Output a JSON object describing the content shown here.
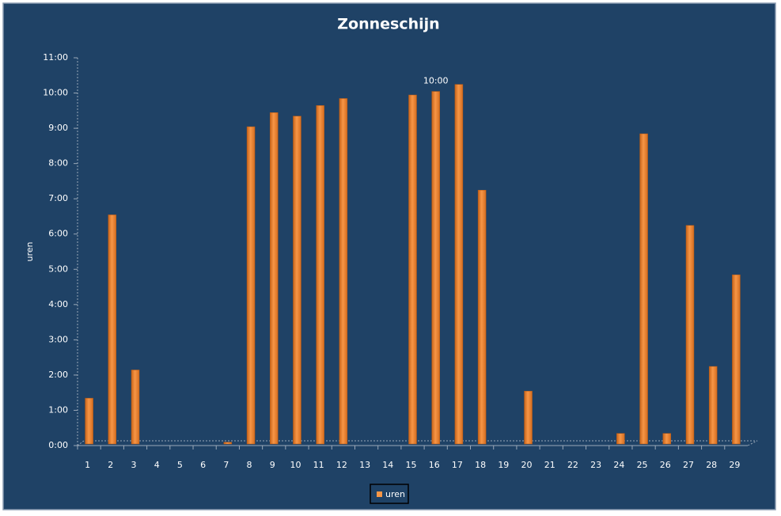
{
  "chart_data": {
    "type": "bar",
    "title": "Zonneschijn",
    "y_label": "uren",
    "categories": [
      "1",
      "2",
      "3",
      "4",
      "5",
      "6",
      "7",
      "8",
      "9",
      "10",
      "11",
      "12",
      "13",
      "14",
      "15",
      "16",
      "17",
      "18",
      "19",
      "20",
      "21",
      "22",
      "23",
      "24",
      "25",
      "26",
      "27",
      "28",
      "29"
    ],
    "series": [
      {
        "name": "uren",
        "color": "#f79646",
        "values": [
          1.3,
          6.5,
          2.1,
          0,
          0,
          0,
          0.05,
          9.0,
          9.4,
          9.3,
          9.6,
          9.8,
          0,
          0,
          9.9,
          10,
          10.2,
          7.2,
          0,
          1.5,
          0,
          0,
          0,
          0.3,
          8.8,
          0.3,
          6.2,
          2.2,
          4.8
        ],
        "value_labels": [
          null,
          null,
          null,
          null,
          null,
          null,
          null,
          null,
          null,
          null,
          null,
          null,
          null,
          null,
          null,
          "10:00",
          null,
          null,
          null,
          null,
          null,
          null,
          null,
          null,
          null,
          null,
          null,
          null,
          null
        ]
      }
    ],
    "ylim": [
      0,
      11
    ],
    "yticks": [
      {
        "value": 0,
        "label": "0:00"
      },
      {
        "value": 1,
        "label": "1:00"
      },
      {
        "value": 2,
        "label": "2:00"
      },
      {
        "value": 3,
        "label": "3:00"
      },
      {
        "value": 4,
        "label": "4:00"
      },
      {
        "value": 5,
        "label": "5:00"
      },
      {
        "value": 6,
        "label": "6:00"
      },
      {
        "value": 7,
        "label": "7:00"
      },
      {
        "value": 8,
        "label": "8:00"
      },
      {
        "value": 9,
        "label": "9:00"
      },
      {
        "value": 10,
        "label": "10:00"
      },
      {
        "value": 11,
        "label": "11:00"
      }
    ],
    "grid": false
  }
}
